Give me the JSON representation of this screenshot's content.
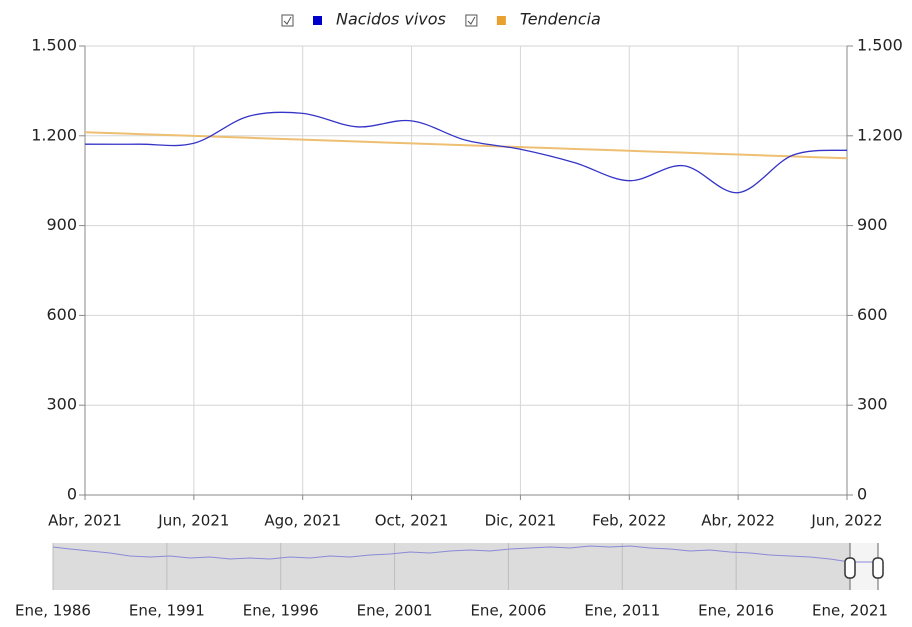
{
  "chart_data": {
    "type": "line",
    "categories": [
      "Abr, 2021",
      null,
      "Jun, 2021",
      null,
      "Ago, 2021",
      null,
      "Oct, 2021",
      null,
      "Dic, 2021",
      null,
      "Feb, 2022",
      null,
      "Abr, 2022",
      null,
      "Jun, 2022"
    ],
    "series": [
      {
        "name": "Nacidos vivos",
        "color": "#3434c8",
        "legend_color": "#0000cc",
        "values": [
          1172,
          1172,
          1175,
          1265,
          1275,
          1230,
          1250,
          1185,
          1155,
          1110,
          1050,
          1100,
          1010,
          1135,
          1152
        ]
      },
      {
        "name": "Tendencia",
        "color": "#eebf72",
        "legend_color": "#e8a030",
        "values": [
          1212,
          1205.8,
          1199.6,
          1193.4,
          1187.1,
          1180.9,
          1174.7,
          1168.5,
          1162.3,
          1156.1,
          1149.9,
          1143.6,
          1137.4,
          1131.2,
          1125
        ]
      }
    ],
    "ylim": [
      0,
      1500
    ],
    "yticks": [
      0,
      300,
      600,
      900,
      {
        "value": 1200,
        "label": "1.200"
      },
      {
        "value": 1500,
        "label": "1.500"
      }
    ],
    "grid": true,
    "legend": "top",
    "smooth": true,
    "navigator_labels": [
      "Ene, 1986",
      "Ene, 1991",
      "Ene, 1996",
      "Ene, 2001",
      "Ene, 2006",
      "Ene, 2011",
      "Ene, 2016",
      "Ene, 2021"
    ]
  }
}
